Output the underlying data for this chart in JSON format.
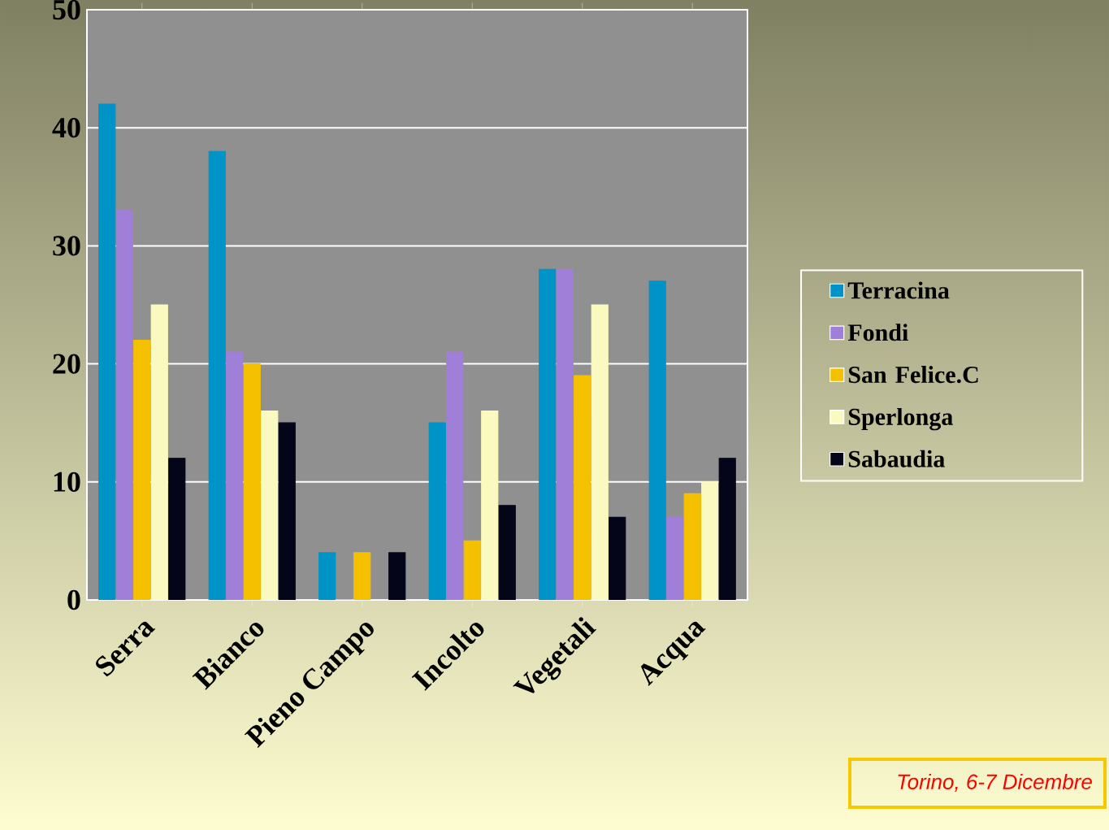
{
  "chart_data": {
    "type": "bar",
    "categories": [
      "Serra",
      "Bianco",
      "Pieno Campo",
      "Incolto",
      "Vegetali",
      "Acqua"
    ],
    "series": [
      {
        "name": "Terracina",
        "color": "#0093c8",
        "values": [
          42,
          38,
          4,
          15,
          28,
          27
        ]
      },
      {
        "name": "Fondi",
        "color": "#a07fd8",
        "values": [
          33,
          21,
          0,
          21,
          28,
          7
        ]
      },
      {
        "name": "San Felice.C",
        "color": "#f5c000",
        "values": [
          22,
          20,
          4,
          5,
          19,
          9
        ]
      },
      {
        "name": "Sperlonga",
        "color": "#fafac0",
        "values": [
          25,
          16,
          0,
          16,
          25,
          10
        ]
      },
      {
        "name": "Sabaudia",
        "color": "#05051a",
        "values": [
          12,
          15,
          4,
          8,
          7,
          12
        ]
      }
    ],
    "ylim": [
      0,
      50
    ],
    "yticks": [
      0,
      10,
      20,
      30,
      40,
      50
    ],
    "grid": "y",
    "legend": "right",
    "annotations": [
      "Torino, 6-7 Dicembre"
    ]
  }
}
